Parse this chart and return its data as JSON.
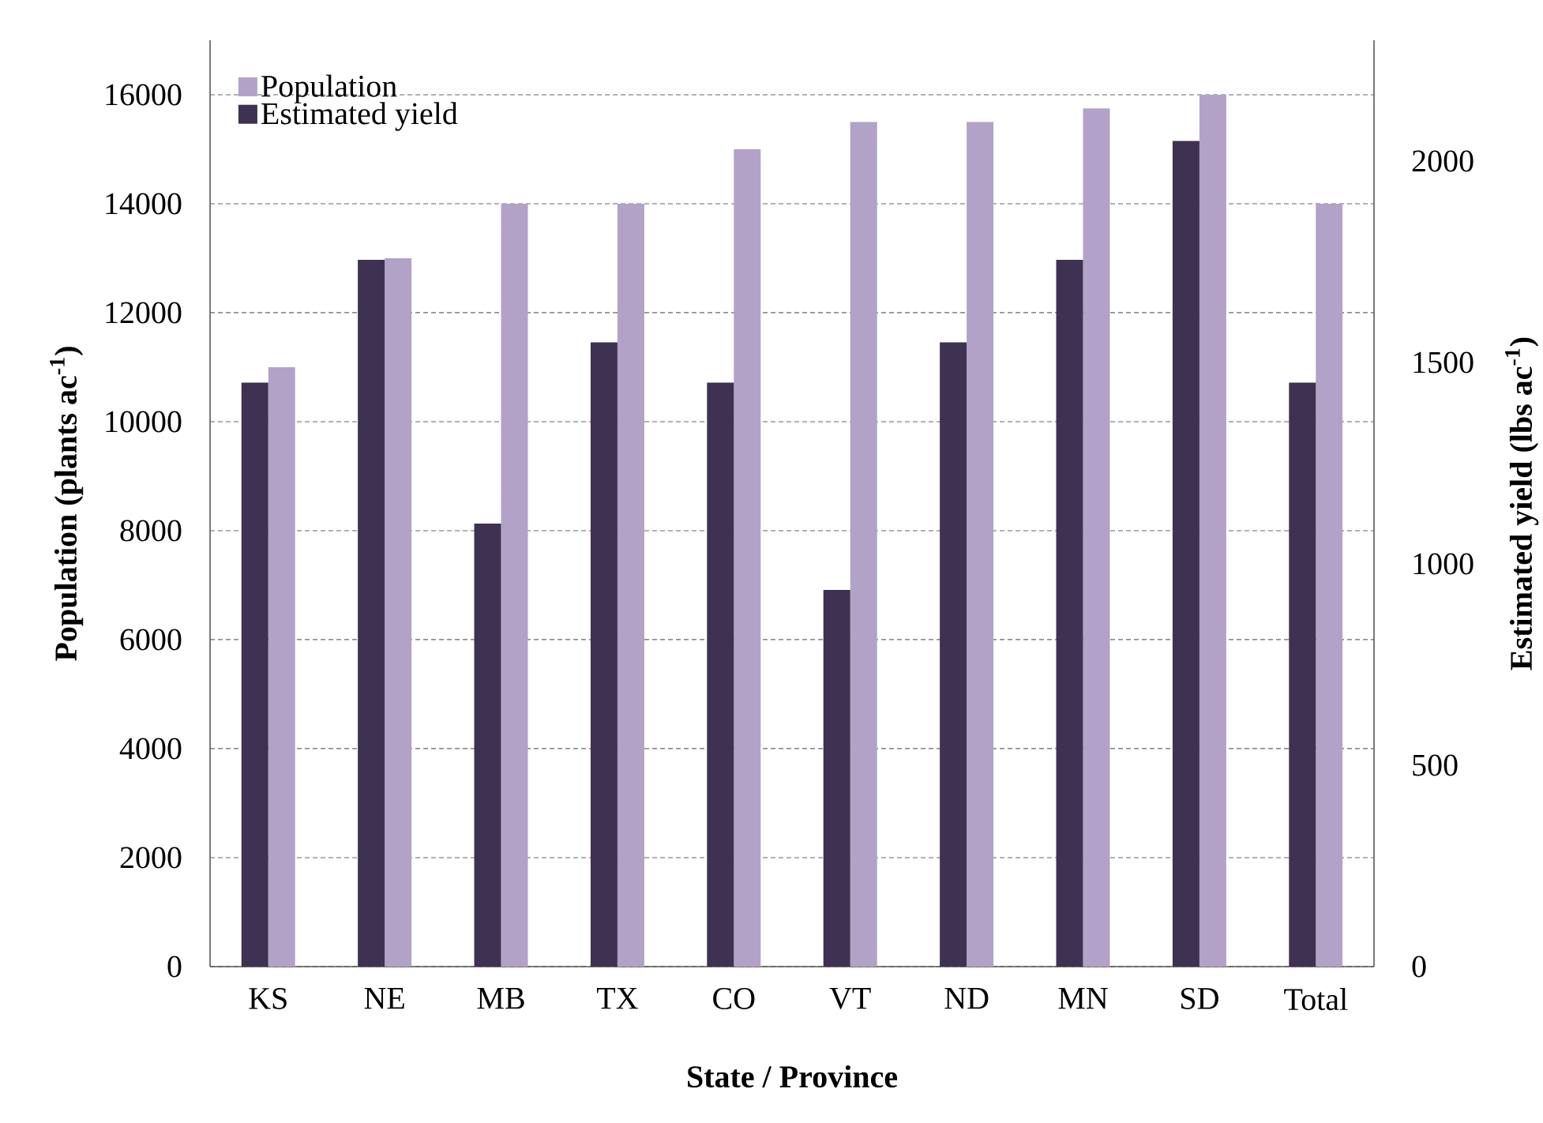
{
  "chart_data": {
    "type": "bar",
    "xlabel": "State / Province",
    "ylabel": "Population (plants ac$^{-1}$)",
    "y2label": "Estimated yield  (lbs ac$^{-1}$)",
    "categories": [
      "KS",
      "NE",
      "MB",
      "TX",
      "CO",
      "VT",
      "ND",
      "MN",
      "SD",
      "Total"
    ],
    "series": [
      {
        "name": "Estimated yield",
        "color": "#3f3151",
        "axis": "y2",
        "values": [
          1450,
          1755,
          1100,
          1550,
          1450,
          935,
          1550,
          1755,
          2050,
          1450
        ]
      },
      {
        "name": "Population",
        "color": "#b2a2c7",
        "values": [
          11000,
          13000,
          14000,
          14000,
          15000,
          15500,
          15500,
          15750,
          16000,
          14000
        ]
      }
    ],
    "ylim": [
      0,
      17000
    ],
    "yticks": [
      0,
      2000,
      4000,
      6000,
      8000,
      10000,
      12000,
      14000,
      16000
    ],
    "y2lim": [
      0,
      2300
    ],
    "y2ticks": [
      0,
      500,
      1000,
      1500,
      2000
    ],
    "grid": "y",
    "legend": "top left"
  }
}
